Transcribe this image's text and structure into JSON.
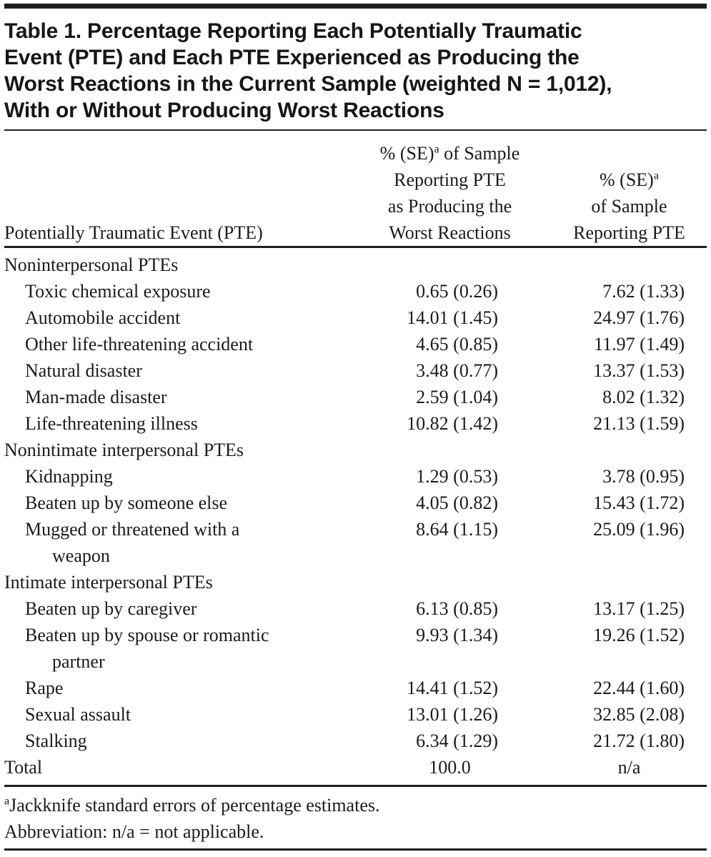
{
  "title": {
    "lines": [
      "Table 1. Percentage Reporting Each Potentially Traumatic",
      "Event (PTE) and Each PTE Experienced as Producing the",
      "Worst Reactions in the Current Sample (weighted N = 1,012),",
      "With or Without Producing Worst Reactions"
    ]
  },
  "header": {
    "col1": "Potentially Traumatic Event (PTE)",
    "marker": "a",
    "col2": {
      "line1_pre": "% (SE)",
      "line1_post": " of Sample",
      "line2": "Reporting PTE",
      "line3": "as Producing the",
      "line4": "Worst Reactions"
    },
    "col3": {
      "line1_pre": "% (SE)",
      "line2": "of Sample",
      "line3": "Reporting PTE"
    }
  },
  "rows": [
    {
      "type": "section",
      "label": "Noninterpersonal PTEs",
      "worst": "",
      "any": ""
    },
    {
      "type": "item",
      "label": "Toxic chemical exposure",
      "worst": "0.65 (0.26)",
      "any": "7.62 (1.33)"
    },
    {
      "type": "item",
      "label": "Automobile accident",
      "worst": "14.01 (1.45)",
      "any": "24.97 (1.76)"
    },
    {
      "type": "item",
      "label": "Other life-threatening accident",
      "worst": "4.65 (0.85)",
      "any": "11.97 (1.49)"
    },
    {
      "type": "item",
      "label": "Natural disaster",
      "worst": "3.48 (0.77)",
      "any": "13.37 (1.53)"
    },
    {
      "type": "item",
      "label": "Man-made disaster",
      "worst": "2.59 (1.04)",
      "any": "8.02 (1.32)"
    },
    {
      "type": "item",
      "label": "Life-threatening illness",
      "worst": "10.82 (1.42)",
      "any": "21.13 (1.59)"
    },
    {
      "type": "section",
      "label": "Nonintimate interpersonal PTEs",
      "worst": "",
      "any": ""
    },
    {
      "type": "item",
      "label": "Kidnapping",
      "worst": "1.29 (0.53)",
      "any": "3.78 (0.95)"
    },
    {
      "type": "item",
      "label": "Beaten up by someone else",
      "worst": "4.05 (0.82)",
      "any": "15.43 (1.72)"
    },
    {
      "type": "item",
      "label": "Mugged or threatened with a\nweapon",
      "worst": "8.64 (1.15)",
      "any": "25.09 (1.96)"
    },
    {
      "type": "section",
      "label": "Intimate interpersonal PTEs",
      "worst": "",
      "any": ""
    },
    {
      "type": "item",
      "label": "Beaten up by caregiver",
      "worst": "6.13 (0.85)",
      "any": "13.17 (1.25)"
    },
    {
      "type": "item",
      "label": "Beaten up by spouse or romantic\npartner",
      "worst": "9.93 (1.34)",
      "any": "19.26 (1.52)"
    },
    {
      "type": "item",
      "label": "Rape",
      "worst": "14.41 (1.52)",
      "any": "22.44 (1.60)"
    },
    {
      "type": "item",
      "label": "Sexual assault",
      "worst": "13.01 (1.26)",
      "any": "32.85 (2.08)"
    },
    {
      "type": "item",
      "label": "Stalking",
      "worst": "6.34 (1.29)",
      "any": "21.72 (1.80)"
    },
    {
      "type": "total",
      "label": "Total",
      "worst": "100.0",
      "any": "n/a"
    }
  ],
  "footnotes": {
    "marker": "a",
    "jackknife": "Jackknife standard errors of percentage estimates.",
    "abbreviation": "Abbreviation: n/a = not applicable."
  },
  "colors": {
    "background": "#ffffff",
    "text": "#1b1b1b",
    "rule": "#1d1d1d"
  }
}
